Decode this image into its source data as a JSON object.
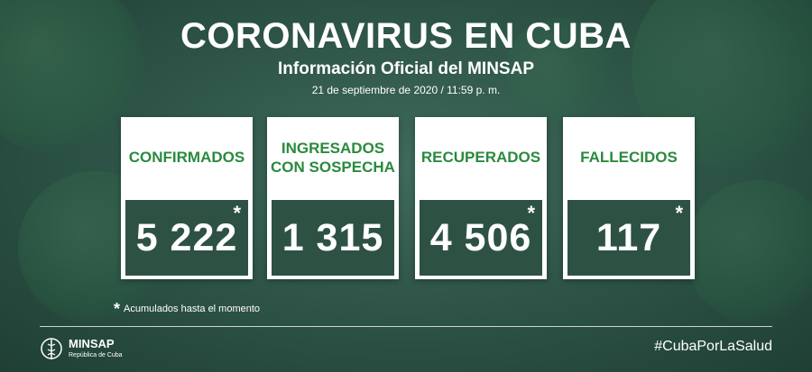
{
  "header": {
    "title": "CORONAVIRUS EN CUBA",
    "subtitle": "Información Oficial del MINSAP",
    "date": "21 de septiembre de 2020 / 11:59 p. m."
  },
  "stats": [
    {
      "label_line1": "CONFIRMADOS",
      "label_line2": "",
      "value": "5 222",
      "star": "*"
    },
    {
      "label_line1": "INGRESADOS",
      "label_line2": "CON SOSPECHA",
      "value": "1 315",
      "star": ""
    },
    {
      "label_line1": "RECUPERADOS",
      "label_line2": "",
      "value": "4 506",
      "star": "*"
    },
    {
      "label_line1": "FALLECIDOS",
      "label_line2": "",
      "value": "117",
      "star": "*"
    }
  ],
  "footnote": {
    "star": "*",
    "text": "Acumulados hasta el momento"
  },
  "footer": {
    "logo_name": "MINSAP",
    "logo_tag": "República de Cuba",
    "hashtag": "#CubaPorLaSalud"
  },
  "colors": {
    "background": "#2f5649",
    "card_label": "#2a8a3e",
    "value_box": "#2d5244"
  }
}
